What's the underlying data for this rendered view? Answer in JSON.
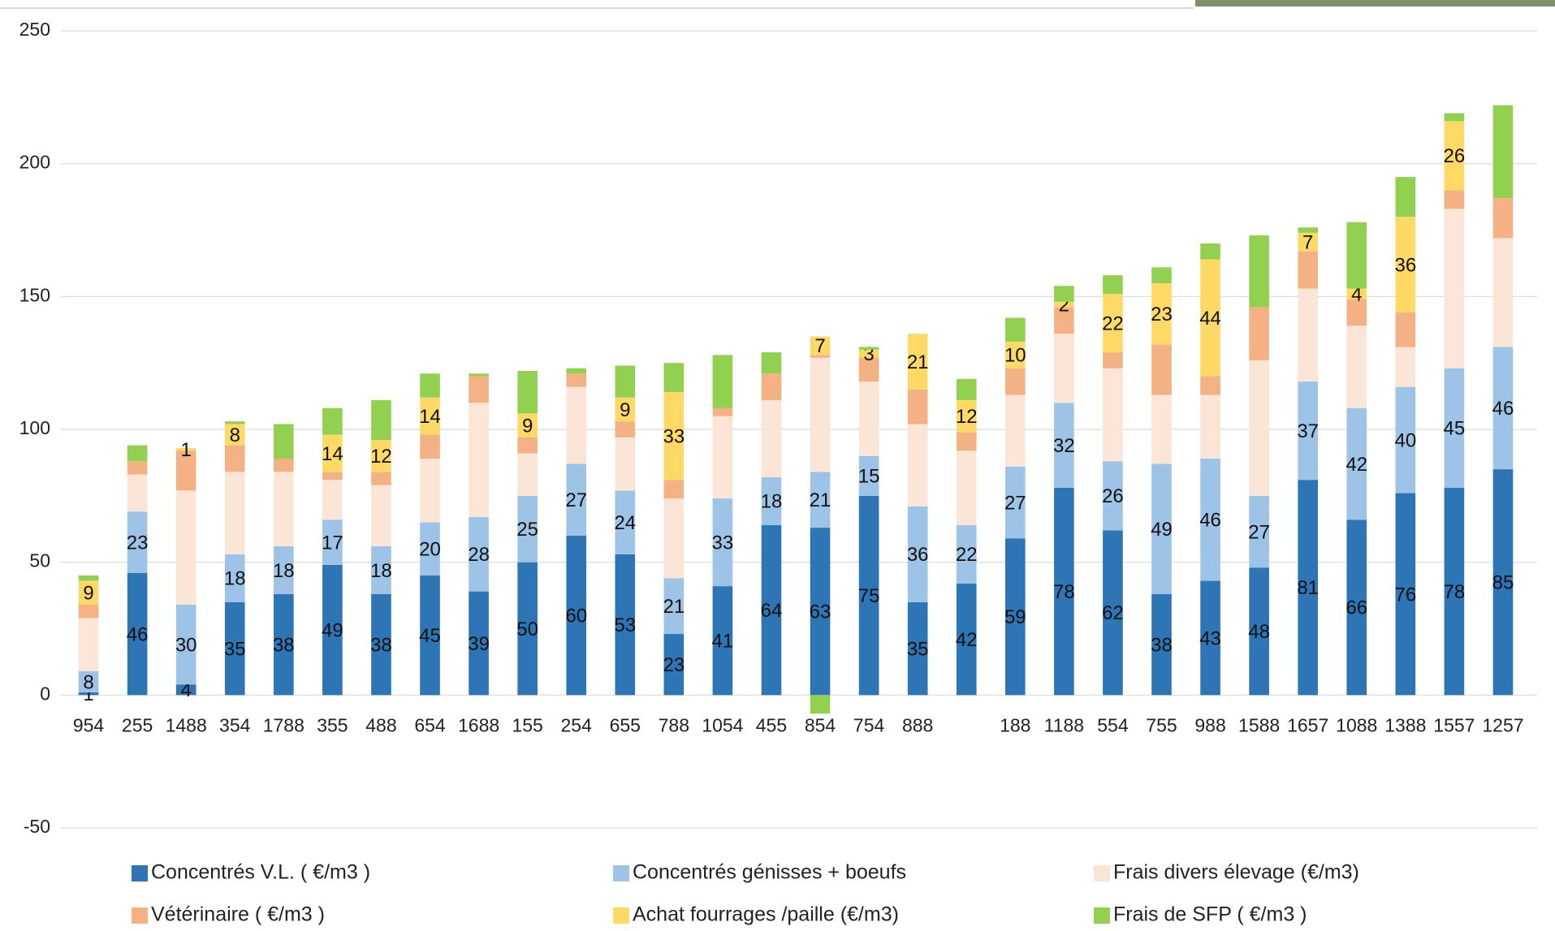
{
  "chart_data": {
    "type": "stacked_bar",
    "categories": [
      "954",
      "255",
      "1488",
      "354",
      "1788",
      "355",
      "488",
      "654",
      "1688",
      "155",
      "254",
      "655",
      "788",
      "1054",
      "455",
      "854",
      "754",
      "888",
      null,
      "188",
      "1188",
      "554",
      "755",
      "988",
      "1588",
      "1657",
      "1088",
      "1388",
      "1557",
      "1257"
    ],
    "series": [
      {
        "name": "Concentrés V.L. ( €/m3 )",
        "color": "#2e75b6",
        "labels": true,
        "values": [
          1,
          46,
          4,
          35,
          38,
          49,
          38,
          45,
          39,
          50,
          60,
          53,
          23,
          41,
          64,
          63,
          75,
          35,
          42,
          59,
          78,
          62,
          38,
          43,
          48,
          81,
          66,
          76,
          78,
          85
        ]
      },
      {
        "name": "Concentrés génisses + boeufs",
        "color": "#9dc3e6",
        "labels": true,
        "values": [
          8,
          23,
          30,
          18,
          18,
          17,
          18,
          20,
          28,
          25,
          27,
          24,
          21,
          33,
          18,
          21,
          15,
          36,
          22,
          27,
          32,
          26,
          49,
          46,
          27,
          37,
          42,
          40,
          45,
          46
        ]
      },
      {
        "name": "Frais divers élevage (€/m3)",
        "color": "#fbe5d6",
        "labels": false,
        "values": [
          20,
          14,
          43,
          31,
          28,
          15,
          23,
          24,
          43,
          16,
          29,
          20,
          30,
          31,
          29,
          43,
          28,
          31,
          28,
          27,
          26,
          35,
          26,
          24,
          51,
          35,
          31,
          15,
          60,
          41
        ]
      },
      {
        "name": "Vétérinaire ( €/m3 )",
        "color": "#f4b183",
        "labels": false,
        "values": [
          5,
          5,
          15,
          10,
          5,
          3,
          5,
          9,
          10,
          6,
          5,
          6,
          7,
          3,
          10,
          1,
          9,
          13,
          7,
          10,
          10,
          6,
          19,
          7,
          20,
          14,
          10,
          13,
          7,
          15
        ]
      },
      {
        "name": "Achat fourrages /paille (€/m3)",
        "color": "#ffd966",
        "labels": true,
        "values": [
          9,
          null,
          1,
          8,
          null,
          14,
          12,
          14,
          null,
          9,
          null,
          9,
          33,
          null,
          null,
          7,
          3,
          21,
          12,
          10,
          2,
          22,
          23,
          44,
          null,
          7,
          4,
          36,
          26,
          null
        ]
      },
      {
        "name": "Frais de SFP  ( €/m3 )",
        "color": "#92d050",
        "labels": false,
        "values": [
          2,
          6,
          null,
          1,
          13,
          10,
          15,
          9,
          1,
          16,
          2,
          12,
          11,
          20,
          8,
          -7,
          1,
          null,
          8,
          9,
          6,
          7,
          6,
          6,
          27,
          2,
          25,
          15,
          3,
          35
        ]
      }
    ],
    "ylim": [
      -50,
      250
    ],
    "yticks": [
      -50,
      0,
      50,
      100,
      150,
      200,
      250
    ],
    "grid": true,
    "legend": "bottom"
  }
}
